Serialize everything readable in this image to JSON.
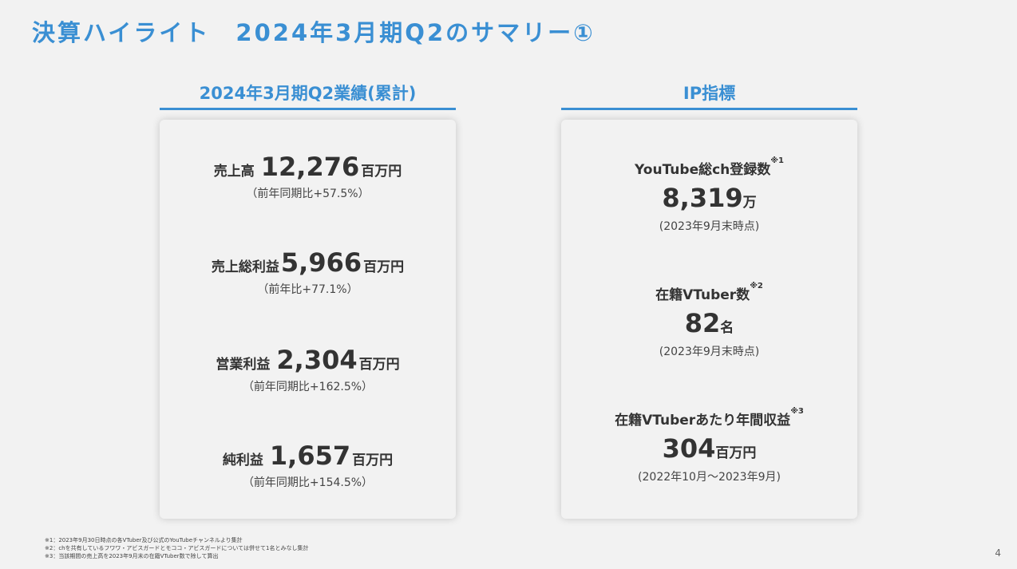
{
  "title": "決算ハイライト　2024年3月期Q2のサマリー①",
  "left_panel": {
    "heading": "2024年3月期Q2業績(累計)",
    "metrics": [
      {
        "label": "売上高",
        "value": "12,276",
        "unit": "百万円",
        "sub": "（前年同期比+57.5%）"
      },
      {
        "label": "売上総利益",
        "value": "5,966",
        "unit": "百万円",
        "sub": "（前年比+77.1%）"
      },
      {
        "label": "営業利益",
        "value": "2,304",
        "unit": "百万円",
        "sub": "（前年同期比+162.5%）"
      },
      {
        "label": "純利益",
        "value": "1,657",
        "unit": "百万円",
        "sub": "（前年同期比+154.5%）"
      }
    ]
  },
  "right_panel": {
    "heading": "IP指標",
    "metrics": [
      {
        "label": "YouTube総ch登録数",
        "note": "※1",
        "value": "8,319",
        "unit": "万",
        "sub": "(2023年9月末時点)"
      },
      {
        "label": "在籍VTuber数",
        "note": "※2",
        "value": "82",
        "unit": "名",
        "sub": "(2023年9月末時点)"
      },
      {
        "label": "在籍VTuberあたり年間収益",
        "note": "※3",
        "value": "304",
        "unit": "百万円",
        "sub": "(2022年10月～2023年9月)"
      }
    ]
  },
  "footnotes": [
    "※1：2023年9月30日時点の各VTuber及び公式のYouTubeチャンネルより集計",
    "※2：chを共有しているフワワ・アビスガードとモココ・アビスガードについては併せて1名とみなし集計",
    "※3：当該期間の売上高を2023年9月末の在籍VTuber数で除して算出"
  ],
  "page_number": "4"
}
